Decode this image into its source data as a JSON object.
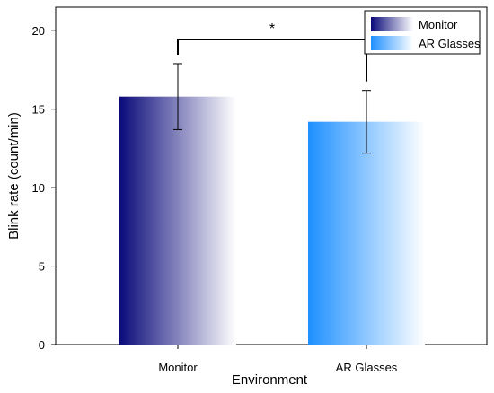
{
  "chart_data": {
    "type": "bar",
    "categories": [
      "Monitor",
      "AR Glasses"
    ],
    "series": [
      {
        "name": "Monitor",
        "values": [
          15.8,
          null
        ],
        "errors": [
          2.1,
          null
        ],
        "color": "#0a0a7a"
      },
      {
        "name": "AR Glasses",
        "values": [
          null,
          14.2
        ],
        "errors": [
          null,
          2.0
        ],
        "color": "#1e90ff"
      }
    ],
    "xlabel": "Environment",
    "ylabel": "Blink rate (count/min)",
    "ylim": [
      0,
      21.5
    ],
    "yticks": [
      "0",
      "5",
      "10",
      "15",
      "20"
    ],
    "significance": {
      "between": [
        "Monitor",
        "AR Glasses"
      ],
      "label": "*"
    },
    "legend": {
      "position": "top-right",
      "entries": [
        "Monitor",
        "AR Glasses"
      ]
    },
    "grid": false
  }
}
